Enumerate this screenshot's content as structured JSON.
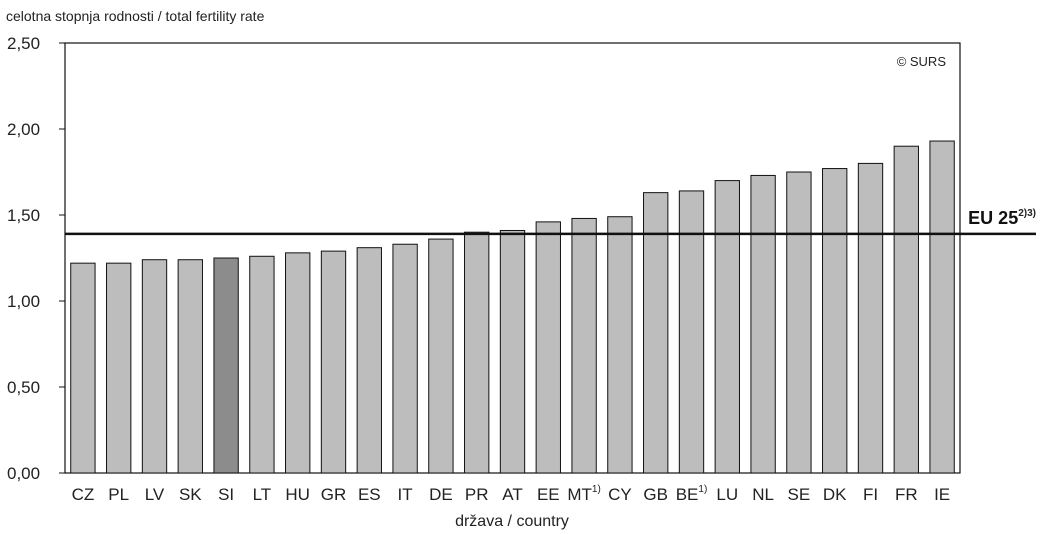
{
  "chart_data": {
    "type": "bar",
    "ylabel": "celotna stopnja rodnosti / total fertility rate",
    "xlabel": "država / country",
    "annotation": "© SURS",
    "ylim": [
      0,
      2.5
    ],
    "yticks": [
      "0,00",
      "0,50",
      "1,00",
      "1,50",
      "2,00",
      "2,50"
    ],
    "ytick_values": [
      0,
      0.5,
      1.0,
      1.5,
      2.0,
      2.5
    ],
    "grid": false,
    "categories": [
      "CZ",
      "PL",
      "LV",
      "SK",
      "SI",
      "LT",
      "HU",
      "GR",
      "ES",
      "IT",
      "DE",
      "PR",
      "AT",
      "EE",
      "MT",
      "CY",
      "GB",
      "BE",
      "LU",
      "NL",
      "SE",
      "DK",
      "FI",
      "FR",
      "IE"
    ],
    "category_footnotes": [
      "",
      "",
      "",
      "",
      "",
      "",
      "",
      "",
      "",
      "",
      "",
      "",
      "",
      "",
      "1)",
      "",
      "",
      "1)",
      "",
      "",
      "",
      "",
      "",
      "",
      ""
    ],
    "values": [
      1.22,
      1.22,
      1.24,
      1.24,
      1.25,
      1.26,
      1.28,
      1.29,
      1.31,
      1.33,
      1.36,
      1.4,
      1.41,
      1.46,
      1.48,
      1.49,
      1.63,
      1.64,
      1.7,
      1.73,
      1.75,
      1.77,
      1.8,
      1.9,
      1.93
    ],
    "highlight_index": 4,
    "colors": {
      "bar": "#bdbdbd",
      "highlight": "#8c8c8c",
      "stroke": "#111111",
      "reference": "#111111"
    },
    "reference_line": {
      "label": "EU 25",
      "footnote": "2)3)",
      "value": 1.39
    }
  }
}
